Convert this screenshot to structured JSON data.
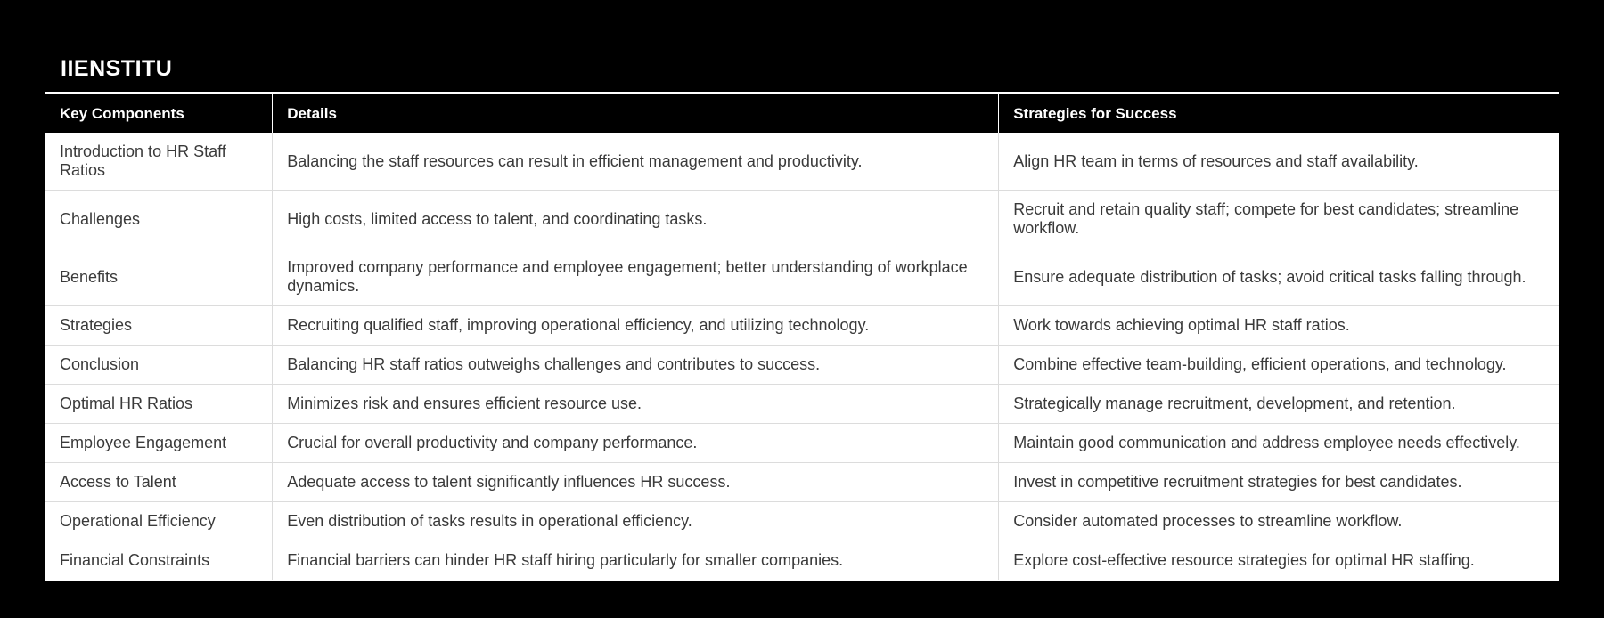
{
  "title": "IIENSTITU",
  "table": {
    "columns": [
      "Key Components",
      "Details",
      "Strategies for Success"
    ],
    "rows": [
      {
        "component": "Introduction to HR Staff Ratios",
        "details": "Balancing the staff resources can result in efficient management and productivity.",
        "strategy": "Align HR team in terms of resources and staff availability."
      },
      {
        "component": "Challenges",
        "details": "High costs, limited access to talent, and coordinating tasks.",
        "strategy": "Recruit and retain quality staff; compete for best candidates; streamline workflow."
      },
      {
        "component": "Benefits",
        "details": "Improved company performance and employee engagement; better understanding of workplace dynamics.",
        "strategy": "Ensure adequate distribution of tasks; avoid critical tasks falling through."
      },
      {
        "component": "Strategies",
        "details": "Recruiting qualified staff, improving operational efficiency, and utilizing technology.",
        "strategy": "Work towards achieving optimal HR staff ratios."
      },
      {
        "component": "Conclusion",
        "details": "Balancing HR staff ratios outweighs challenges and contributes to success.",
        "strategy": "Combine effective team-building, efficient operations, and technology."
      },
      {
        "component": "Optimal HR Ratios",
        "details": "Minimizes risk and ensures efficient resource use.",
        "strategy": "Strategically manage recruitment, development, and retention."
      },
      {
        "component": "Employee Engagement",
        "details": "Crucial for overall productivity and company performance.",
        "strategy": "Maintain good communication and address employee needs effectively."
      },
      {
        "component": "Access to Talent",
        "details": "Adequate access to talent significantly influences HR success.",
        "strategy": "Invest in competitive recruitment strategies for best candidates."
      },
      {
        "component": "Operational Efficiency",
        "details": "Even distribution of tasks results in operational efficiency.",
        "strategy": "Consider automated processes to streamline workflow."
      },
      {
        "component": "Financial Constraints",
        "details": "Financial barriers can hinder HR staff hiring particularly for smaller companies.",
        "strategy": "Explore cost-effective resource strategies for optimal HR staffing."
      }
    ]
  },
  "colors": {
    "page_background": "#000000",
    "header_background": "#000000",
    "header_text": "#ffffff",
    "body_background": "#ffffff",
    "body_text": "#3a3a3a",
    "grid_line": "#dcdcdc",
    "card_border": "#ffffff"
  }
}
